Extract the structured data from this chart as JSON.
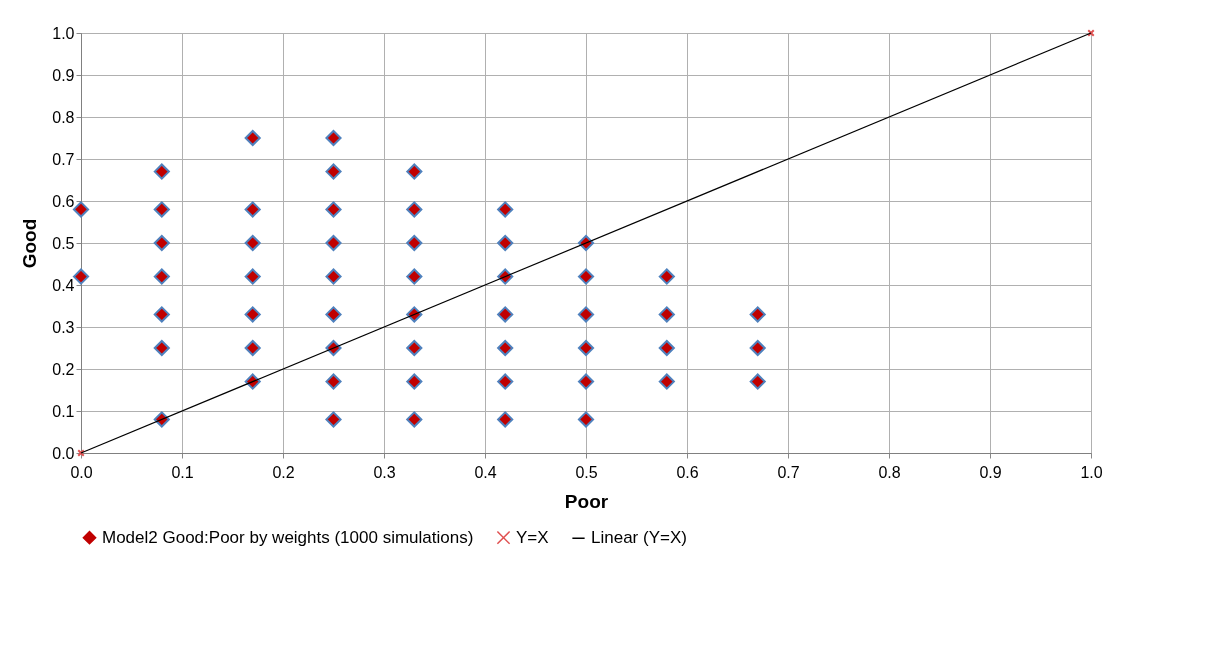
{
  "chart_data": {
    "type": "scatter",
    "xlabel": "Poor",
    "ylabel": "Good",
    "xlim": [
      0,
      1
    ],
    "ylim": [
      0,
      1
    ],
    "xticks": [
      {
        "value": 0,
        "label": "0.0"
      },
      0.1,
      0.2,
      0.3,
      0.4,
      0.5,
      0.6,
      0.7,
      0.8,
      0.9,
      {
        "value": 1,
        "label": "1.0"
      }
    ],
    "yticks": [
      {
        "value": 0,
        "label": "0.0"
      },
      0.1,
      0.2,
      0.3,
      0.4,
      0.5,
      0.6,
      0.7,
      0.8,
      0.9,
      {
        "value": 1,
        "label": "1.0"
      }
    ],
    "grid": true,
    "legend": "bottom",
    "series": [
      {
        "name": "Model2 Good:Poor by weights (1000 simulations)",
        "marker": "diamond",
        "color": "#c00000",
        "x": [
          0,
          0,
          0.08,
          0.08,
          0.08,
          0.08,
          0.08,
          0.08,
          0.08,
          0.17,
          0.17,
          0.17,
          0.17,
          0.17,
          0.17,
          0.17,
          0.25,
          0.25,
          0.25,
          0.25,
          0.25,
          0.25,
          0.25,
          0.25,
          0.25,
          0.33,
          0.33,
          0.33,
          0.33,
          0.33,
          0.33,
          0.33,
          0.33,
          0.42,
          0.42,
          0.42,
          0.42,
          0.42,
          0.42,
          0.42,
          0.5,
          0.5,
          0.5,
          0.5,
          0.5,
          0.5,
          0.58,
          0.58,
          0.58,
          0.58,
          0.67,
          0.67,
          0.67
        ],
        "values": [
          0.58,
          0.42,
          0.67,
          0.58,
          0.5,
          0.42,
          0.33,
          0.25,
          0.08,
          0.75,
          0.58,
          0.5,
          0.42,
          0.33,
          0.25,
          0.17,
          0.75,
          0.67,
          0.58,
          0.5,
          0.42,
          0.33,
          0.25,
          0.17,
          0.08,
          0.67,
          0.58,
          0.5,
          0.42,
          0.33,
          0.25,
          0.17,
          0.08,
          0.58,
          0.5,
          0.42,
          0.33,
          0.25,
          0.17,
          0.08,
          0.5,
          0.42,
          0.33,
          0.25,
          0.17,
          0.08,
          0.42,
          0.33,
          0.25,
          0.17,
          0.33,
          0.25,
          0.17
        ]
      },
      {
        "name": "Y=X",
        "marker": "cross",
        "color": "#e05050",
        "x": [
          0,
          1
        ],
        "values": [
          0,
          1
        ]
      },
      {
        "name": "Linear (Y=X)",
        "type": "line",
        "color": "#000000",
        "x": [
          0,
          1
        ],
        "values": [
          0,
          1
        ]
      }
    ]
  }
}
